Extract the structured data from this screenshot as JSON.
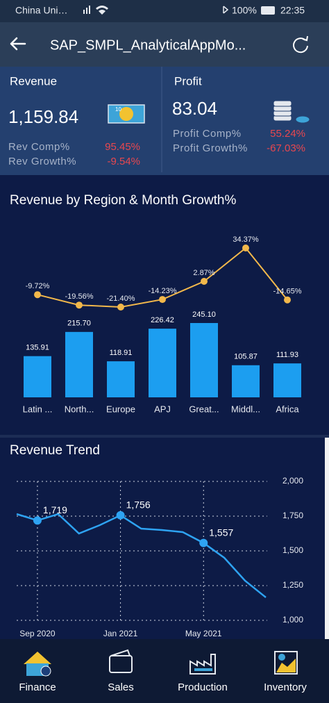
{
  "status_bar": {
    "carrier": "China Uni…",
    "battery": "100%",
    "time": "22:35"
  },
  "header": {
    "title": "SAP_SMPL_AnalyticalAppMo..."
  },
  "kpis": [
    {
      "title": "Revenue",
      "value": "1,159.84",
      "rows": [
        {
          "label": "Rev Comp%",
          "value": "95.45%"
        },
        {
          "label": "Rev Growth%",
          "value": "-9.54%"
        }
      ]
    },
    {
      "title": "Profit",
      "value": "83.04",
      "rows": [
        {
          "label": "Profit Comp%",
          "value": "55.24%"
        },
        {
          "label": "Profit Growth%",
          "value": "-67.03%"
        }
      ]
    }
  ],
  "chart_data": [
    {
      "type": "bar",
      "title": "Revenue by Region & Month Growth%",
      "categories": [
        "Latin ...",
        "North...",
        "Europe",
        "APJ",
        "Great...",
        "Middl...",
        "Africa"
      ],
      "series": [
        {
          "type": "bar",
          "color": "#1c9ef0",
          "values": [
            135.91,
            215.7,
            118.91,
            226.42,
            245.1,
            105.87,
            111.93
          ],
          "value_labels": [
            "135.91",
            "215.70",
            "118.91",
            "226.42",
            "245.10",
            "105.87",
            "111.93"
          ]
        },
        {
          "type": "line",
          "color": "#f2b84b",
          "values": [
            -9.72,
            -19.56,
            -21.4,
            -14.23,
            2.87,
            34.37,
            -14.65
          ],
          "value_labels": [
            "-9.72%",
            "-19.56%",
            "-21.40%",
            "-14.23%",
            "2.87%",
            "34.37%",
            "-14.65%"
          ]
        }
      ]
    },
    {
      "type": "line",
      "title": "Revenue Trend",
      "x": [
        "2020-08",
        "2020-09",
        "2020-10",
        "2020-11",
        "2020-12",
        "2021-01",
        "2021-02",
        "2021-03",
        "2021-04",
        "2021-05",
        "2021-06",
        "2021-07",
        "2021-08"
      ],
      "xticks": [
        {
          "value": "2020-09",
          "label": "Sep 2020"
        },
        {
          "value": "2021-01",
          "label": "Jan 2021"
        },
        {
          "value": "2021-05",
          "label": "May 2021"
        }
      ],
      "ylim": [
        1000,
        2000
      ],
      "yticks": [
        {
          "value": 1000,
          "label": "1,000"
        },
        {
          "value": 1250,
          "label": "1,250"
        },
        {
          "value": 1500,
          "label": "1,500"
        },
        {
          "value": 1750,
          "label": "1,750"
        },
        {
          "value": 2000,
          "label": "2,000"
        }
      ],
      "grid": true,
      "series": [
        {
          "color": "#2ea3f2",
          "values": [
            1765,
            1719,
            1765,
            1625,
            1685,
            1756,
            1660,
            1650,
            1635,
            1557,
            1450,
            1285,
            1165
          ],
          "value_labels": [
            null,
            "1,719",
            null,
            null,
            null,
            "1,756",
            null,
            null,
            null,
            "1,557",
            null,
            null,
            null
          ]
        }
      ]
    }
  ],
  "nav": [
    "Finance",
    "Sales",
    "Production",
    "Inventory"
  ]
}
